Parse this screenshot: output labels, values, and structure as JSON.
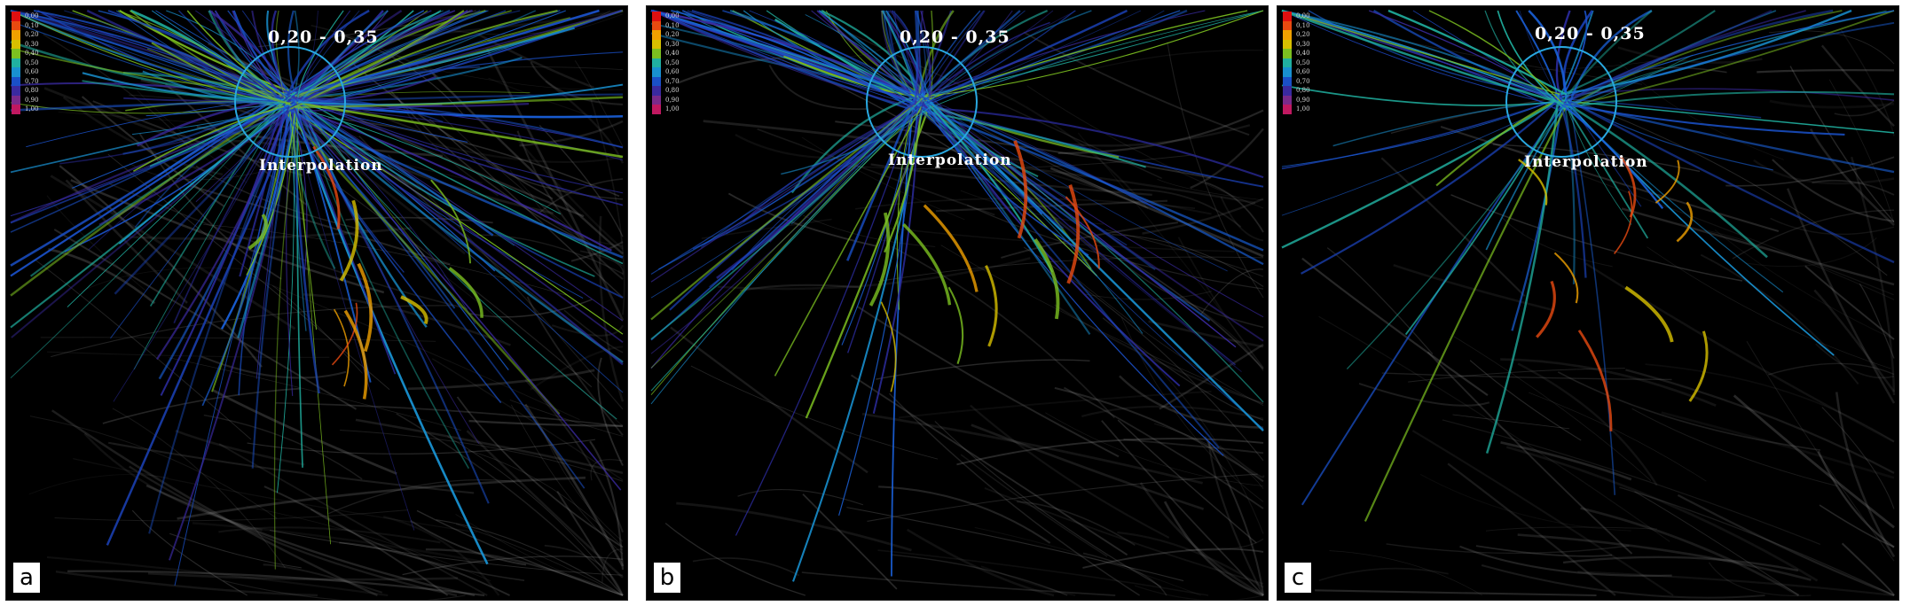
{
  "panels": [
    {
      "id": "a",
      "label": "a",
      "range_text": "0,20 - 0,35",
      "interpolation_text": "Interpolation",
      "legend": [
        "0,00",
        "0,10",
        "0,20",
        "0,30",
        "0,40",
        "0,50",
        "0,60",
        "0,70",
        "0,80",
        "0,90",
        "1,00"
      ],
      "density": "high"
    },
    {
      "id": "b",
      "label": "b",
      "range_text": "0,20 - 0,35",
      "interpolation_text": "Interpolation",
      "legend": [
        "0,00",
        "0,10",
        "0,20",
        "0,30",
        "0,40",
        "0,50",
        "0,60",
        "0,70",
        "0,80",
        "0,90",
        "1,00"
      ],
      "density": "medium"
    },
    {
      "id": "c",
      "label": "c",
      "range_text": "0,20 - 0,35",
      "interpolation_text": "Interpolation",
      "legend": [
        "0,00",
        "0,10",
        "0,20",
        "0,30",
        "0,40",
        "0,50",
        "0,60",
        "0,70",
        "0,80",
        "0,90",
        "1,00"
      ],
      "density": "low"
    }
  ],
  "colors": {
    "background": "#000000",
    "legend_scale": [
      "#e01010",
      "#e84a10",
      "#f0a000",
      "#d8c000",
      "#7cc020",
      "#20b0a0",
      "#1890d0",
      "#1a50c8",
      "#3a2aa0",
      "#7a2a8a",
      "#c01860"
    ],
    "focus_circle": "#29a8e0",
    "context_edges": "#9a9a9a"
  }
}
